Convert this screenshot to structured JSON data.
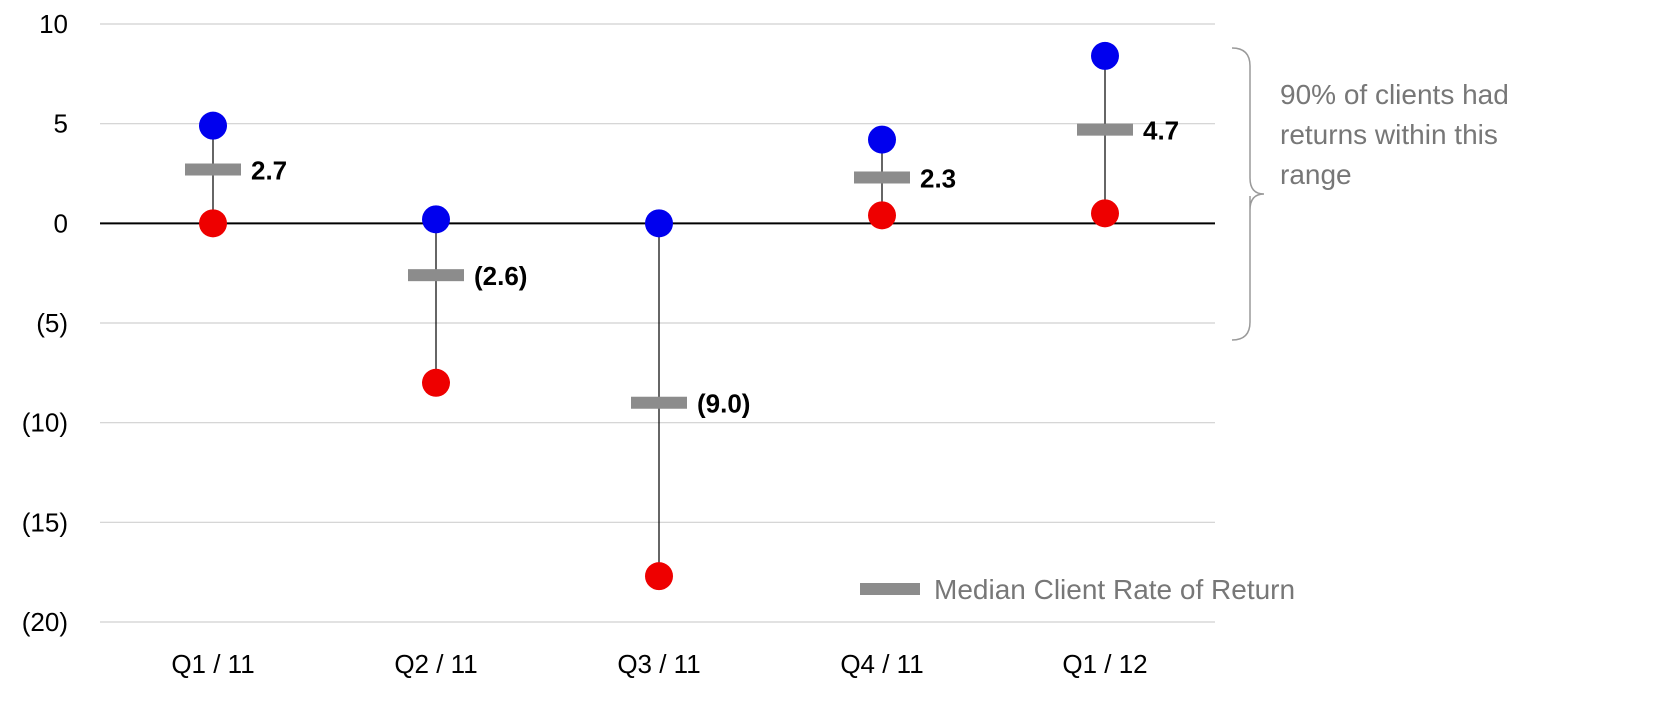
{
  "chart_data": {
    "type": "range-dot",
    "categories": [
      "Q1 / 11",
      "Q2 / 11",
      "Q3 / 11",
      "Q4 / 11",
      "Q1 / 12"
    ],
    "series": [
      {
        "name": "",
        "role": "high",
        "color": "#0000ee",
        "values": [
          4.9,
          0.2,
          0.0,
          4.2,
          8.4
        ]
      },
      {
        "name": "",
        "role": "low",
        "color": "#ee0000",
        "values": [
          0.0,
          -8.0,
          -17.7,
          0.4,
          0.5
        ]
      },
      {
        "name": "Median Client Rate of Return",
        "role": "median",
        "color": "#8c8c8c",
        "values": [
          2.7,
          -2.6,
          -9.0,
          2.3,
          4.7
        ]
      }
    ],
    "data_labels": [
      "2.7",
      "(2.6)",
      "(9.0)",
      "2.3",
      "4.7"
    ],
    "yticks": [
      10,
      5,
      0,
      -5,
      -10,
      -15,
      -20
    ],
    "ytick_labels": [
      "10",
      "5",
      "0",
      "(5)",
      "(10)",
      "(15)",
      "(20)"
    ],
    "ylim": [
      -20,
      10
    ],
    "grid": true,
    "legend": {
      "label": "Median Client Rate of Return",
      "position": "bottom-right"
    },
    "annotation": {
      "lines": [
        "90% of clients had",
        "returns within this",
        "range"
      ]
    },
    "title": "",
    "xlabel": "",
    "ylabel": ""
  }
}
